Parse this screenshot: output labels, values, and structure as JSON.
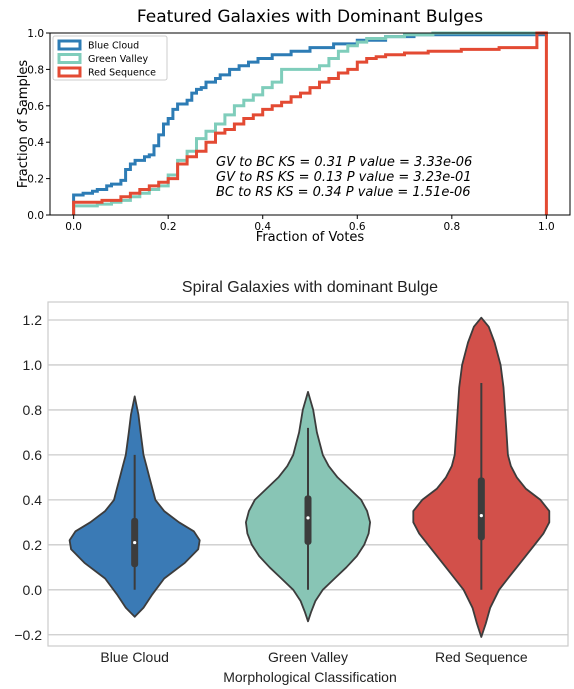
{
  "chart_data": [
    {
      "type": "line",
      "subtype": "step-ecdf",
      "title": "Featured Galaxies with Dominant Bulges",
      "xlabel": "Fraction of Votes",
      "ylabel": "Fraction of Samples",
      "xlim": [
        -0.05,
        1.05
      ],
      "ylim": [
        0.0,
        1.0
      ],
      "xticks": [
        "0.0",
        "0.2",
        "0.4",
        "0.6",
        "0.8",
        "1.0"
      ],
      "yticks": [
        "0.0",
        "0.2",
        "0.4",
        "0.6",
        "0.8",
        "1.0"
      ],
      "legend_position": "top-left",
      "annotations": [
        "GV to BC KS = 0.31 P value = 3.33e-06",
        "GV to RS KS = 0.13 P value = 3.23e-01",
        "BC to RS KS = 0.34 P value = 1.51e-06"
      ],
      "series": [
        {
          "name": "Blue Cloud",
          "color": "#2d7cb5",
          "x": [
            0.0,
            0.02,
            0.04,
            0.05,
            0.07,
            0.08,
            0.1,
            0.11,
            0.12,
            0.13,
            0.15,
            0.16,
            0.17,
            0.18,
            0.19,
            0.2,
            0.21,
            0.22,
            0.24,
            0.25,
            0.26,
            0.27,
            0.28,
            0.3,
            0.31,
            0.33,
            0.35,
            0.37,
            0.39,
            0.42,
            0.46,
            0.5,
            0.55,
            0.6,
            0.66,
            0.72,
            1.0
          ],
          "y": [
            0.11,
            0.12,
            0.13,
            0.14,
            0.16,
            0.17,
            0.19,
            0.25,
            0.28,
            0.3,
            0.32,
            0.33,
            0.38,
            0.44,
            0.5,
            0.53,
            0.58,
            0.61,
            0.63,
            0.67,
            0.69,
            0.7,
            0.73,
            0.75,
            0.77,
            0.8,
            0.82,
            0.84,
            0.86,
            0.88,
            0.9,
            0.92,
            0.94,
            0.96,
            0.98,
            0.99,
            1.0
          ]
        },
        {
          "name": "Green Valley",
          "color": "#7fcdbb",
          "x": [
            0.0,
            0.05,
            0.08,
            0.1,
            0.12,
            0.14,
            0.16,
            0.18,
            0.2,
            0.22,
            0.24,
            0.26,
            0.28,
            0.3,
            0.32,
            0.34,
            0.36,
            0.38,
            0.4,
            0.42,
            0.44,
            0.52,
            0.54,
            0.56,
            0.58,
            0.6,
            0.62,
            0.66,
            0.7,
            0.76,
            1.0
          ],
          "y": [
            0.05,
            0.06,
            0.07,
            0.08,
            0.1,
            0.12,
            0.14,
            0.16,
            0.22,
            0.3,
            0.35,
            0.42,
            0.46,
            0.5,
            0.55,
            0.6,
            0.63,
            0.66,
            0.7,
            0.73,
            0.8,
            0.82,
            0.86,
            0.9,
            0.93,
            0.95,
            0.97,
            0.98,
            0.99,
            1.0,
            1.0
          ]
        },
        {
          "name": "Red Sequence",
          "color": "#e34a33",
          "x": [
            0.0,
            0.06,
            0.1,
            0.12,
            0.14,
            0.16,
            0.18,
            0.2,
            0.22,
            0.24,
            0.26,
            0.28,
            0.3,
            0.32,
            0.34,
            0.36,
            0.38,
            0.4,
            0.42,
            0.44,
            0.46,
            0.48,
            0.5,
            0.52,
            0.54,
            0.56,
            0.58,
            0.6,
            0.62,
            0.64,
            0.66,
            0.7,
            0.75,
            0.82,
            0.9,
            0.98,
            1.0
          ],
          "y": [
            0.07,
            0.08,
            0.1,
            0.12,
            0.14,
            0.16,
            0.18,
            0.2,
            0.28,
            0.32,
            0.35,
            0.4,
            0.45,
            0.47,
            0.5,
            0.53,
            0.55,
            0.58,
            0.6,
            0.62,
            0.65,
            0.67,
            0.7,
            0.73,
            0.75,
            0.78,
            0.8,
            0.84,
            0.86,
            0.87,
            0.88,
            0.89,
            0.9,
            0.91,
            0.92,
            1.0,
            0.0
          ]
        }
      ]
    },
    {
      "type": "violin",
      "title": "Spiral Galaxies with dominant Bulge",
      "xlabel": "Morphological Classification",
      "ylabel": "",
      "ylim": [
        -0.25,
        1.28
      ],
      "yticks": [
        "−0.2",
        "0.0",
        "0.2",
        "0.4",
        "0.6",
        "0.8",
        "1.0",
        "1.2"
      ],
      "categories": [
        "Blue Cloud",
        "Green Valley",
        "Red Sequence"
      ],
      "colors": [
        "#3a7ab5",
        "#88c5b5",
        "#d2504a"
      ],
      "grid": "horizontal",
      "violins": [
        {
          "min": -0.12,
          "max": 0.86,
          "median": 0.21,
          "q1": 0.1,
          "q3": 0.32,
          "whisker_low": 0.0,
          "whisker_high": 0.6,
          "profile": [
            [
              -0.12,
              0.0
            ],
            [
              -0.08,
              0.06
            ],
            [
              -0.02,
              0.12
            ],
            [
              0.05,
              0.2
            ],
            [
              0.12,
              0.34
            ],
            [
              0.18,
              0.43
            ],
            [
              0.22,
              0.44
            ],
            [
              0.26,
              0.4
            ],
            [
              0.3,
              0.3
            ],
            [
              0.35,
              0.2
            ],
            [
              0.4,
              0.14
            ],
            [
              0.45,
              0.12
            ],
            [
              0.5,
              0.1
            ],
            [
              0.55,
              0.08
            ],
            [
              0.6,
              0.06
            ],
            [
              0.7,
              0.04
            ],
            [
              0.78,
              0.025
            ],
            [
              0.86,
              0.0
            ]
          ]
        },
        {
          "min": -0.14,
          "max": 0.88,
          "median": 0.32,
          "q1": 0.2,
          "q3": 0.42,
          "whisker_low": 0.0,
          "whisker_high": 0.72,
          "profile": [
            [
              -0.14,
              0.0
            ],
            [
              -0.1,
              0.02
            ],
            [
              -0.05,
              0.05
            ],
            [
              0.0,
              0.1
            ],
            [
              0.05,
              0.18
            ],
            [
              0.1,
              0.26
            ],
            [
              0.15,
              0.33
            ],
            [
              0.2,
              0.38
            ],
            [
              0.25,
              0.41
            ],
            [
              0.3,
              0.42
            ],
            [
              0.35,
              0.4
            ],
            [
              0.4,
              0.36
            ],
            [
              0.45,
              0.28
            ],
            [
              0.5,
              0.2
            ],
            [
              0.55,
              0.14
            ],
            [
              0.6,
              0.1
            ],
            [
              0.7,
              0.06
            ],
            [
              0.8,
              0.035
            ],
            [
              0.88,
              0.0
            ]
          ]
        },
        {
          "min": -0.21,
          "max": 1.21,
          "median": 0.33,
          "q1": 0.22,
          "q3": 0.5,
          "whisker_low": 0.0,
          "whisker_high": 0.92,
          "profile": [
            [
              -0.21,
              0.0
            ],
            [
              -0.15,
              0.03
            ],
            [
              -0.08,
              0.06
            ],
            [
              0.0,
              0.12
            ],
            [
              0.05,
              0.18
            ],
            [
              0.1,
              0.24
            ],
            [
              0.15,
              0.3
            ],
            [
              0.2,
              0.36
            ],
            [
              0.25,
              0.42
            ],
            [
              0.3,
              0.46
            ],
            [
              0.35,
              0.46
            ],
            [
              0.4,
              0.4
            ],
            [
              0.45,
              0.3
            ],
            [
              0.5,
              0.24
            ],
            [
              0.55,
              0.2
            ],
            [
              0.6,
              0.18
            ],
            [
              0.7,
              0.17
            ],
            [
              0.8,
              0.16
            ],
            [
              0.9,
              0.15
            ],
            [
              1.0,
              0.13
            ],
            [
              1.1,
              0.09
            ],
            [
              1.17,
              0.05
            ],
            [
              1.21,
              0.0
            ]
          ]
        }
      ]
    }
  ]
}
